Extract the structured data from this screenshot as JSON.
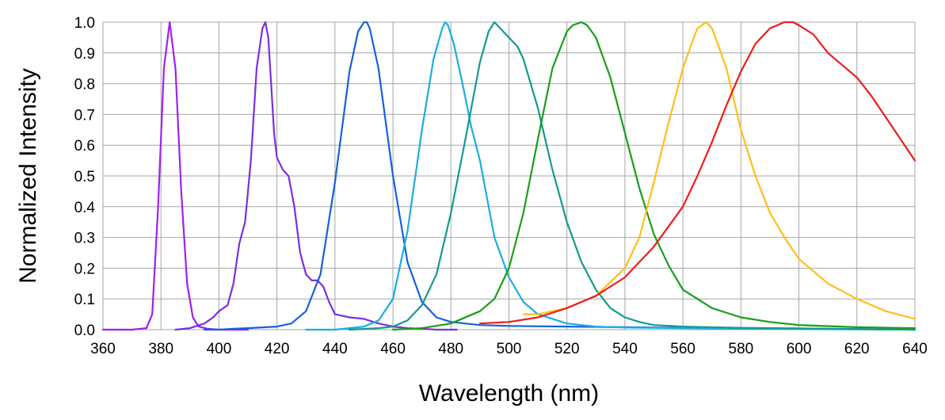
{
  "chart_data": {
    "type": "line",
    "title": "",
    "xlabel": "Wavelength (nm)",
    "ylabel": "Normalized Intensity",
    "xlim": [
      360,
      640
    ],
    "ylim": [
      0.0,
      1.0
    ],
    "x_ticks": [
      "360",
      "380",
      "400",
      "420",
      "440",
      "460",
      "480",
      "500",
      "520",
      "540",
      "560",
      "580",
      "600",
      "620",
      "640"
    ],
    "y_ticks": [
      "0.0",
      "0.1",
      "0.2",
      "0.3",
      "0.4",
      "0.5",
      "0.6",
      "0.7",
      "0.8",
      "0.9",
      "1.0"
    ],
    "grid": true,
    "legend": "none",
    "series": [
      {
        "color": "#a020f0",
        "x": [
          360,
          370,
          375,
          377,
          379,
          381,
          383,
          385,
          387,
          389,
          391,
          393,
          396,
          400,
          410
        ],
        "y": [
          0.0,
          0.0,
          0.005,
          0.05,
          0.4,
          0.85,
          1.0,
          0.85,
          0.45,
          0.15,
          0.04,
          0.01,
          0.003,
          0.0,
          0.0
        ]
      },
      {
        "color": "#7b2fe0",
        "x": [
          385,
          390,
          395,
          398,
          400,
          403,
          405,
          407,
          409,
          411,
          413,
          415,
          416,
          417,
          418,
          419,
          420,
          422,
          424,
          426,
          428,
          430,
          432,
          434,
          436,
          438,
          440,
          445,
          450,
          455,
          460,
          465,
          470,
          475,
          480,
          482
        ],
        "y": [
          0.0,
          0.005,
          0.02,
          0.04,
          0.06,
          0.08,
          0.15,
          0.28,
          0.35,
          0.55,
          0.85,
          0.98,
          1.0,
          0.95,
          0.8,
          0.64,
          0.56,
          0.52,
          0.5,
          0.4,
          0.25,
          0.18,
          0.16,
          0.16,
          0.14,
          0.09,
          0.05,
          0.04,
          0.035,
          0.02,
          0.01,
          0.005,
          0.003,
          0.0,
          0.0,
          0.0
        ]
      },
      {
        "color": "#1560e0",
        "x": [
          395,
          400,
          405,
          410,
          420,
          425,
          430,
          435,
          440,
          445,
          448,
          450,
          451,
          452,
          455,
          460,
          465,
          470,
          475,
          480,
          490,
          500,
          520,
          540,
          560,
          580,
          600,
          620,
          640
        ],
        "y": [
          0.0,
          0.0,
          0.003,
          0.005,
          0.01,
          0.02,
          0.06,
          0.18,
          0.48,
          0.84,
          0.97,
          1.0,
          1.0,
          0.98,
          0.85,
          0.5,
          0.22,
          0.09,
          0.04,
          0.025,
          0.015,
          0.012,
          0.01,
          0.008,
          0.006,
          0.004,
          0.003,
          0.002,
          0.0
        ]
      },
      {
        "color": "#1aaee0",
        "x": [
          430,
          440,
          450,
          455,
          460,
          465,
          470,
          474,
          477,
          478,
          479,
          481,
          484,
          487,
          490,
          495,
          500,
          505,
          510,
          520,
          530,
          540,
          560,
          580,
          600,
          620,
          640
        ],
        "y": [
          0.0,
          0.0,
          0.01,
          0.03,
          0.1,
          0.32,
          0.65,
          0.88,
          0.98,
          1.0,
          0.99,
          0.93,
          0.8,
          0.66,
          0.55,
          0.3,
          0.17,
          0.09,
          0.05,
          0.02,
          0.01,
          0.007,
          0.005,
          0.003,
          0.002,
          0.001,
          0.0
        ]
      },
      {
        "color": "#149a8e",
        "x": [
          445,
          455,
          460,
          465,
          470,
          475,
          480,
          485,
          490,
          493,
          495,
          497,
          500,
          503,
          505,
          510,
          515,
          520,
          525,
          530,
          535,
          540,
          545,
          550,
          560,
          580,
          600,
          620,
          640
        ],
        "y": [
          0.0,
          0.005,
          0.01,
          0.03,
          0.08,
          0.18,
          0.38,
          0.62,
          0.87,
          0.97,
          1.0,
          0.98,
          0.95,
          0.92,
          0.88,
          0.72,
          0.52,
          0.35,
          0.22,
          0.13,
          0.07,
          0.04,
          0.025,
          0.015,
          0.01,
          0.006,
          0.004,
          0.002,
          0.0
        ]
      },
      {
        "color": "#1a9e1a",
        "x": [
          460,
          470,
          480,
          490,
          495,
          500,
          505,
          510,
          515,
          520,
          522,
          525,
          527,
          530,
          535,
          540,
          545,
          550,
          555,
          560,
          570,
          580,
          590,
          600,
          620,
          640
        ],
        "y": [
          0.0,
          0.005,
          0.02,
          0.06,
          0.1,
          0.2,
          0.38,
          0.62,
          0.85,
          0.97,
          0.99,
          1.0,
          0.99,
          0.95,
          0.82,
          0.64,
          0.46,
          0.31,
          0.21,
          0.13,
          0.07,
          0.04,
          0.025,
          0.015,
          0.008,
          0.005
        ]
      },
      {
        "color": "#ffbf1a",
        "x": [
          505,
          510,
          520,
          530,
          540,
          545,
          550,
          555,
          560,
          563,
          565,
          568,
          570,
          572,
          575,
          580,
          585,
          590,
          595,
          600,
          610,
          620,
          630,
          640
        ],
        "y": [
          0.05,
          0.05,
          0.07,
          0.11,
          0.2,
          0.3,
          0.48,
          0.67,
          0.85,
          0.93,
          0.98,
          1.0,
          0.98,
          0.93,
          0.85,
          0.65,
          0.5,
          0.38,
          0.3,
          0.23,
          0.15,
          0.1,
          0.06,
          0.035
        ]
      },
      {
        "color": "#ee1c1c",
        "x": [
          490,
          500,
          510,
          520,
          530,
          540,
          550,
          560,
          565,
          570,
          575,
          580,
          585,
          590,
          595,
          598,
          600,
          605,
          610,
          615,
          620,
          625,
          630,
          635,
          640
        ],
        "y": [
          0.02,
          0.025,
          0.04,
          0.07,
          0.11,
          0.17,
          0.27,
          0.4,
          0.5,
          0.61,
          0.73,
          0.84,
          0.93,
          0.98,
          1.0,
          1.0,
          0.99,
          0.96,
          0.9,
          0.86,
          0.82,
          0.76,
          0.69,
          0.62,
          0.55
        ]
      }
    ]
  }
}
